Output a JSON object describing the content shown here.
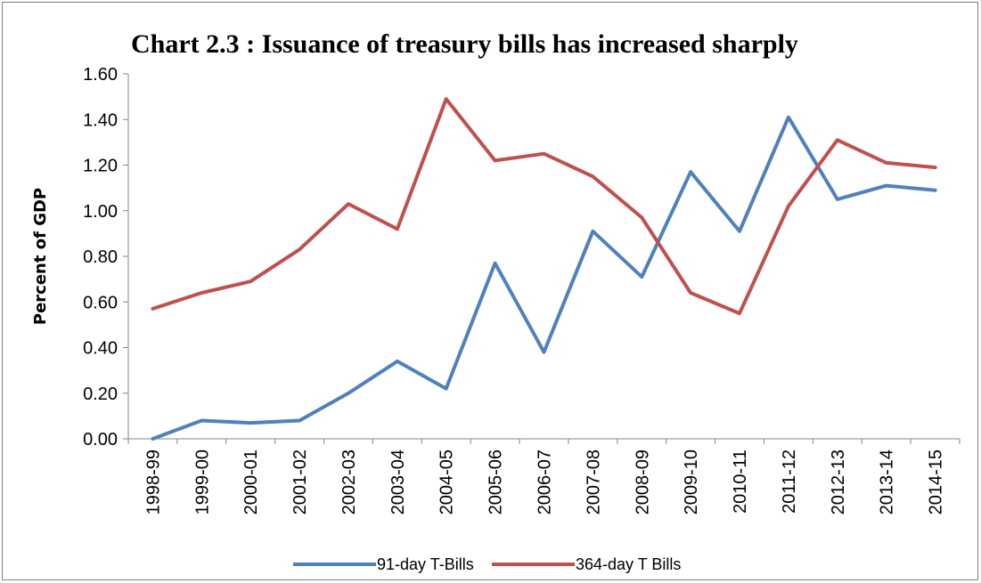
{
  "chart_data": {
    "type": "line",
    "title": "Chart 2.3 :  Issuance of treasury bills has increased sharply",
    "xlabel": "",
    "ylabel": "Percent of GDP",
    "ylim": [
      0,
      1.6
    ],
    "yticks": [
      "0.00",
      "0.20",
      "0.40",
      "0.60",
      "0.80",
      "1.00",
      "1.20",
      "1.40",
      "1.60"
    ],
    "grid": false,
    "legend_position": "bottom",
    "categories": [
      "1998-99",
      "1999-00",
      "2000-01",
      "2001-02",
      "2002-03",
      "2003-04",
      "2004-05",
      "2005-06",
      "2006-07",
      "2007-08",
      "2008-09",
      "2009-10",
      "2010-11",
      "2011-12",
      "2012-13",
      "2013-14",
      "2014-15"
    ],
    "series": [
      {
        "name": "91-day T-Bills",
        "color": "#4f81bd",
        "values": [
          0.0,
          0.08,
          0.07,
          0.08,
          0.2,
          0.34,
          0.22,
          0.77,
          0.38,
          0.91,
          0.71,
          1.17,
          0.91,
          1.41,
          1.05,
          1.11,
          1.09
        ]
      },
      {
        "name": "364-day T Bills",
        "color": "#c0504d",
        "values": [
          0.57,
          0.64,
          0.69,
          0.83,
          1.03,
          0.92,
          1.49,
          1.22,
          1.25,
          1.15,
          0.97,
          0.64,
          0.55,
          1.02,
          1.31,
          1.21,
          1.19
        ]
      }
    ]
  }
}
